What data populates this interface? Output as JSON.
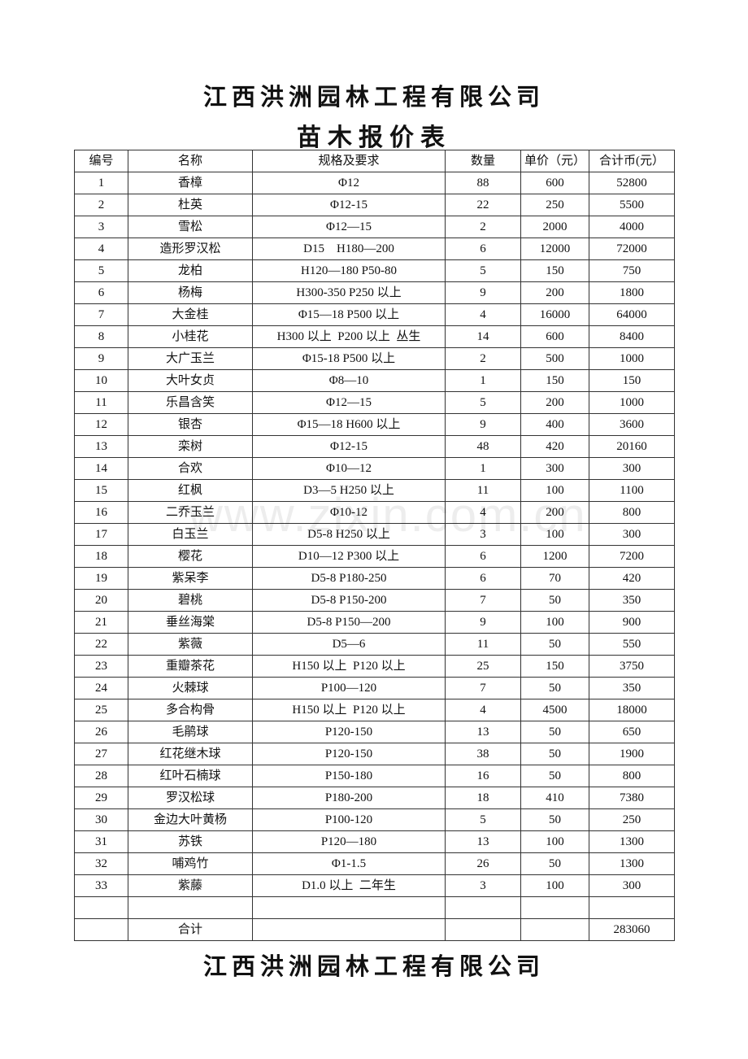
{
  "company": "江西洪洲园林工程有限公司",
  "doc_title": "苗木报价表",
  "watermark": "www.zixin.com.cn",
  "table": {
    "headers": [
      "编号",
      "名称",
      "规格及要求",
      "数量",
      "单价（元）",
      "合计币(元）"
    ],
    "rows": [
      [
        "1",
        "香樟",
        "Φ12",
        "88",
        "600",
        "52800"
      ],
      [
        "2",
        "杜英",
        "Φ12-15",
        "22",
        "250",
        "5500"
      ],
      [
        "3",
        "雪松",
        "Φ12—15",
        "2",
        "2000",
        "4000"
      ],
      [
        "4",
        "造形罗汉松",
        "D15    H180—200",
        "6",
        "12000",
        "72000"
      ],
      [
        "5",
        "龙柏",
        "H120—180 P50-80",
        "5",
        "150",
        "750"
      ],
      [
        "6",
        "杨梅",
        "H300-350 P250 以上",
        "9",
        "200",
        "1800"
      ],
      [
        "7",
        "大金桂",
        "Φ15—18 P500 以上",
        "4",
        "16000",
        "64000"
      ],
      [
        "8",
        "小桂花",
        "H300 以上  P200 以上  丛生",
        "14",
        "600",
        "8400"
      ],
      [
        "9",
        "大广玉兰",
        "Φ15-18 P500 以上",
        "2",
        "500",
        "1000"
      ],
      [
        "10",
        "大叶女贞",
        "Φ8—10",
        "1",
        "150",
        "150"
      ],
      [
        "11",
        "乐昌含笑",
        "Φ12—15",
        "5",
        "200",
        "1000"
      ],
      [
        "12",
        "银杏",
        "Φ15—18 H600 以上",
        "9",
        "400",
        "3600"
      ],
      [
        "13",
        "栾树",
        "Φ12-15",
        "48",
        "420",
        "20160"
      ],
      [
        "14",
        "合欢",
        "Φ10—12",
        "1",
        "300",
        "300"
      ],
      [
        "15",
        "红枫",
        "D3—5 H250 以上",
        "11",
        "100",
        "1100"
      ],
      [
        "16",
        "二乔玉兰",
        "Φ10-12",
        "4",
        "200",
        "800"
      ],
      [
        "17",
        "白玉兰",
        "D5-8 H250 以上",
        "3",
        "100",
        "300"
      ],
      [
        "18",
        "樱花",
        "D10—12 P300 以上",
        "6",
        "1200",
        "7200"
      ],
      [
        "19",
        "紫呆李",
        "D5-8 P180-250",
        "6",
        "70",
        "420"
      ],
      [
        "20",
        "碧桃",
        "D5-8 P150-200",
        "7",
        "50",
        "350"
      ],
      [
        "21",
        "垂丝海棠",
        "D5-8 P150—200",
        "9",
        "100",
        "900"
      ],
      [
        "22",
        "紫薇",
        "D5—6",
        "11",
        "50",
        "550"
      ],
      [
        "23",
        "重瓣茶花",
        "H150 以上  P120 以上",
        "25",
        "150",
        "3750"
      ],
      [
        "24",
        "火棘球",
        "P100—120",
        "7",
        "50",
        "350"
      ],
      [
        "25",
        "多合构骨",
        "H150 以上  P120 以上",
        "4",
        "4500",
        "18000"
      ],
      [
        "26",
        "毛鹃球",
        "P120-150",
        "13",
        "50",
        "650"
      ],
      [
        "27",
        "红花继木球",
        "P120-150",
        "38",
        "50",
        "1900"
      ],
      [
        "28",
        "红叶石楠球",
        "P150-180",
        "16",
        "50",
        "800"
      ],
      [
        "29",
        "罗汉松球",
        "P180-200",
        "18",
        "410",
        "7380"
      ],
      [
        "30",
        "金边大叶黄杨",
        "P100-120",
        "5",
        "50",
        "250"
      ],
      [
        "31",
        "苏铁",
        "P120—180",
        "13",
        "100",
        "1300"
      ],
      [
        "32",
        "哺鸡竹",
        "Φ1-1.5",
        "26",
        "50",
        "1300"
      ],
      [
        "33",
        "紫藤",
        "D1.0 以上  二年生",
        "3",
        "100",
        "300"
      ],
      [
        "",
        "",
        "",
        "",
        "",
        ""
      ],
      [
        "",
        "合计",
        "",
        "",
        "",
        "283060"
      ]
    ]
  }
}
